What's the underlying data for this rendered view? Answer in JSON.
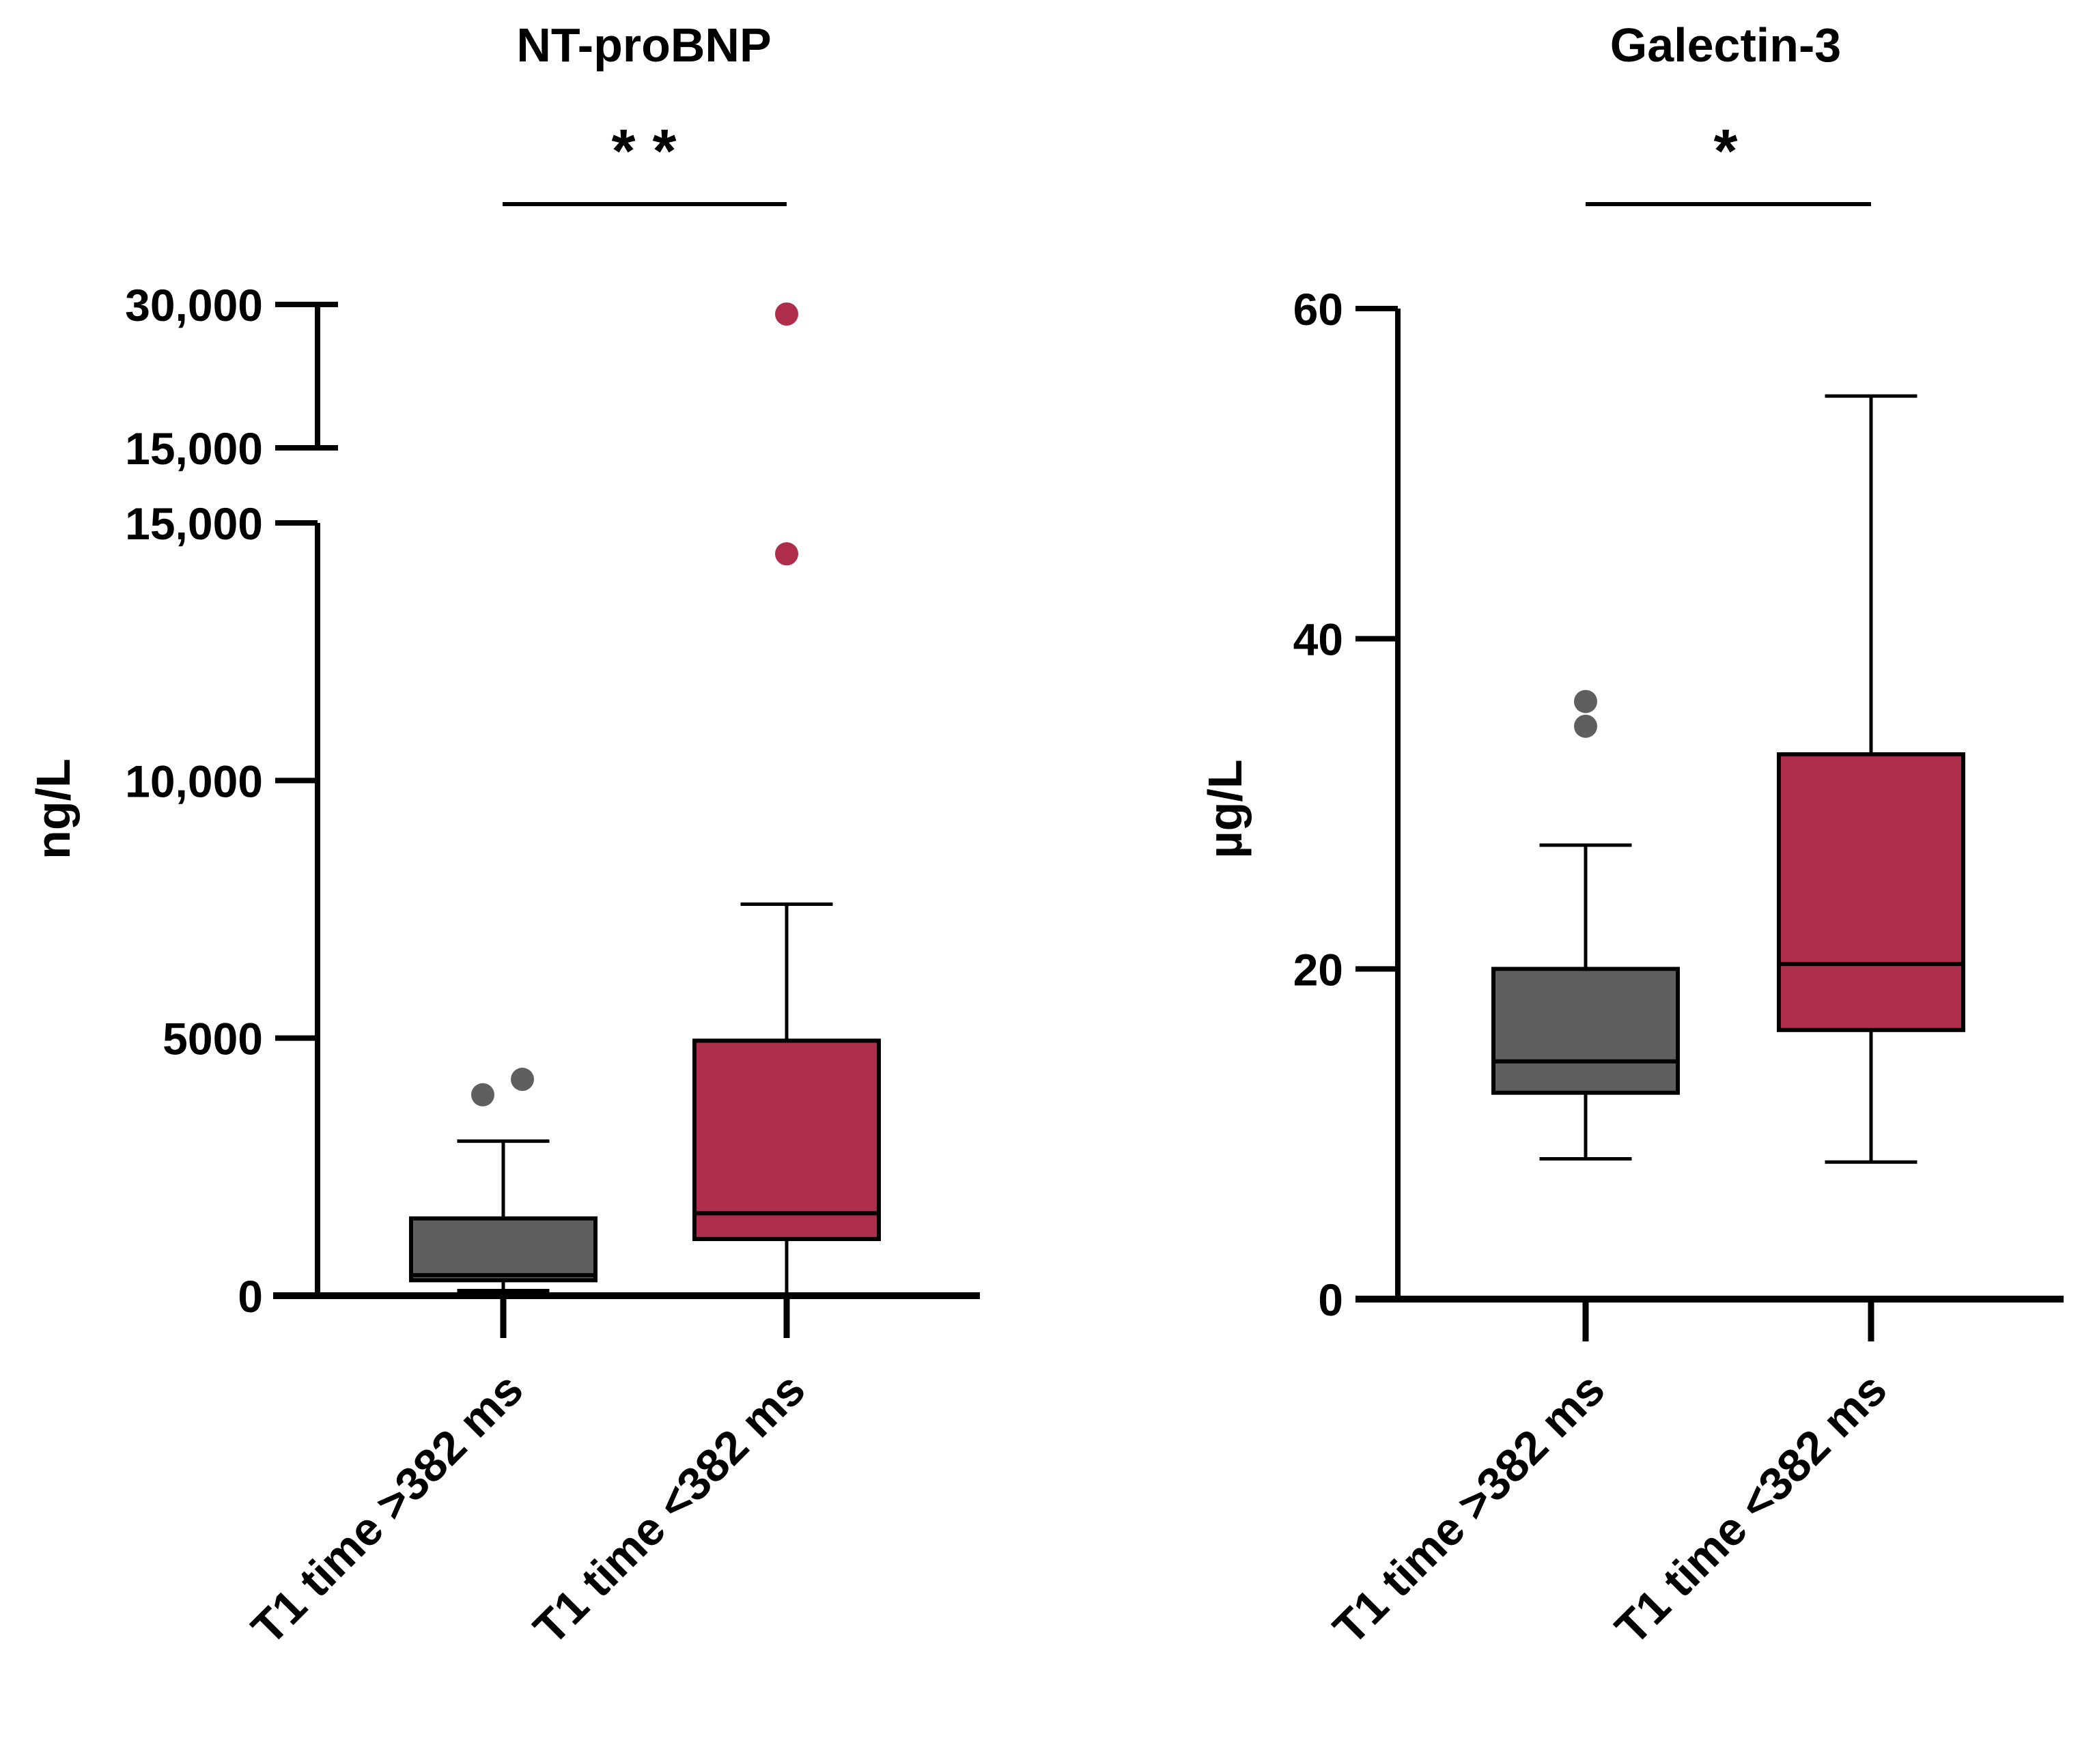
{
  "chart_data": [
    {
      "type": "box",
      "title": "NT-proBNP",
      "ylabel": "ng/L",
      "significance": "* *",
      "y_axis": {
        "broken": true,
        "lower_range": [
          0,
          15000
        ],
        "upper_range": [
          15000,
          30000
        ],
        "lower_ticks": [
          {
            "value": 0,
            "label": "0"
          },
          {
            "value": 5000,
            "label": "5000"
          },
          {
            "value": 10000,
            "label": "10,000"
          },
          {
            "value": 15000,
            "label": "15,000"
          }
        ],
        "upper_ticks": [
          {
            "value": 15000,
            "label": "15,000"
          },
          {
            "value": 30000,
            "label": "30,000"
          }
        ]
      },
      "categories": [
        "T1 time >382 ms",
        "T1 time <382 ms"
      ],
      "series": [
        {
          "name": "T1 time >382 ms",
          "color": "#5f5f5f",
          "whisker_low": 100,
          "q1": 300,
          "median": 400,
          "q3": 1500,
          "whisker_high": 3000,
          "outliers": [
            3900,
            4200
          ]
        },
        {
          "name": "T1 time <382 ms",
          "color": "#ad2d4a",
          "whisker_low": 0,
          "q1": 1100,
          "median": 1600,
          "q3": 4950,
          "whisker_high": 7600,
          "outliers": [
            14400,
            29000
          ]
        }
      ]
    },
    {
      "type": "box",
      "title": "Galectin-3",
      "ylabel": "µg/L",
      "significance": "*",
      "y_axis": {
        "broken": false,
        "range": [
          0,
          60
        ],
        "ticks": [
          {
            "value": 0,
            "label": "0"
          },
          {
            "value": 20,
            "label": "20"
          },
          {
            "value": 40,
            "label": "40"
          },
          {
            "value": 60,
            "label": "60"
          }
        ]
      },
      "categories": [
        "T1 time >382 ms",
        "T1 time <382 ms"
      ],
      "series": [
        {
          "name": "T1 time >382 ms",
          "color": "#5f5f5f",
          "whisker_low": 8.5,
          "q1": 12.5,
          "median": 14.4,
          "q3": 20,
          "whisker_high": 27.5,
          "outliers": [
            34.7,
            36.2
          ]
        },
        {
          "name": "T1 time <382 ms",
          "color": "#ad2d4a",
          "whisker_low": 8.3,
          "q1": 16.3,
          "median": 20.3,
          "q3": 33,
          "whisker_high": 54.7,
          "outliers": []
        }
      ]
    }
  ]
}
